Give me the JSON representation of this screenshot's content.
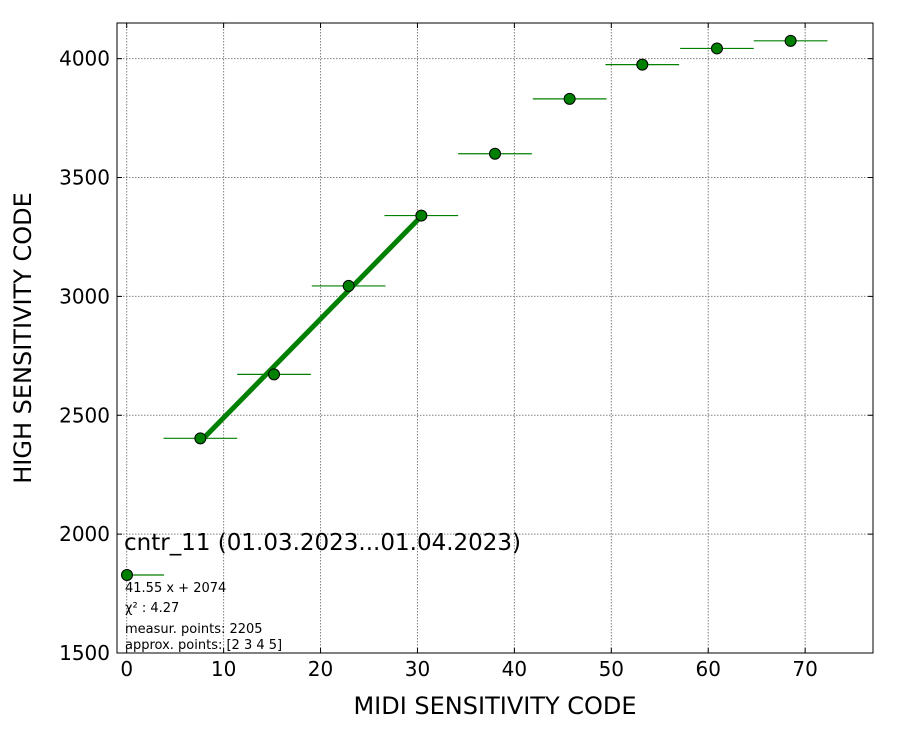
{
  "chart_data": {
    "type": "scatter",
    "title": "",
    "xlabel": "MIDI SENSITIVITY CODE",
    "ylabel": "HIGH SENSITIVITY CODE",
    "xlim": [
      -1,
      77
    ],
    "ylim": [
      1500,
      4150
    ],
    "xticks": [
      0,
      10,
      20,
      30,
      40,
      50,
      60,
      70
    ],
    "yticks": [
      1500,
      2000,
      2500,
      3000,
      3500,
      4000
    ],
    "grid": true,
    "colors": {
      "marker": "#008000",
      "fit_line": "#008000",
      "marker_edge": "#000000",
      "grid": "#808080"
    },
    "points": [
      {
        "x": 7.6,
        "y": 2403,
        "xerr": 3.8
      },
      {
        "x": 15.2,
        "y": 2672,
        "xerr": 3.8
      },
      {
        "x": 22.9,
        "y": 3044,
        "xerr": 3.8
      },
      {
        "x": 30.4,
        "y": 3340,
        "xerr": 3.8
      },
      {
        "x": 38.0,
        "y": 3600,
        "xerr": 3.8
      },
      {
        "x": 45.7,
        "y": 3831,
        "xerr": 3.8
      },
      {
        "x": 53.2,
        "y": 3975,
        "xerr": 3.8
      },
      {
        "x": 60.9,
        "y": 4043,
        "xerr": 3.8
      },
      {
        "x": 68.5,
        "y": 4075,
        "xerr": 3.8
      }
    ],
    "fit": {
      "slope": 41.55,
      "intercept": 2074,
      "x_range": [
        7.6,
        30.4
      ]
    },
    "legend": {
      "position": "lower-left",
      "title": "cntr_11 (01.03.2023...01.04.2023)",
      "equation": "41.55 x + 2074",
      "chi2_label": "χ² : 4.27",
      "measur_points": "measur. points: 2205",
      "approx_points": "approx. points: [2 3 4 5]"
    }
  }
}
